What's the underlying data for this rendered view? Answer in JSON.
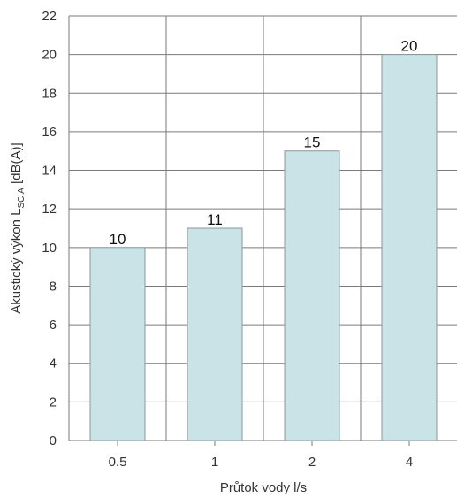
{
  "chart_data": {
    "type": "bar",
    "categories": [
      "0.5",
      "1",
      "2",
      "4"
    ],
    "values": [
      10,
      11,
      15,
      20
    ],
    "data_labels": [
      "10",
      "11",
      "15",
      "20"
    ],
    "xlabel": "Průtok vody l/s",
    "ylabel": {
      "main": "Akustický výkon L",
      "subscript": "SC,A",
      "unit": " [dB(A)]"
    },
    "ylim": [
      0,
      22
    ],
    "yticks": [
      "0",
      "2",
      "4",
      "6",
      "8",
      "10",
      "12",
      "14",
      "16",
      "18",
      "20",
      "22"
    ],
    "grid": true,
    "legend": "none",
    "colors": {
      "bar_fill": "#c9e3e7",
      "bar_stroke": "#8a9a9e",
      "grid": "#7a7a7a",
      "axis": "#7a7a7a"
    }
  }
}
